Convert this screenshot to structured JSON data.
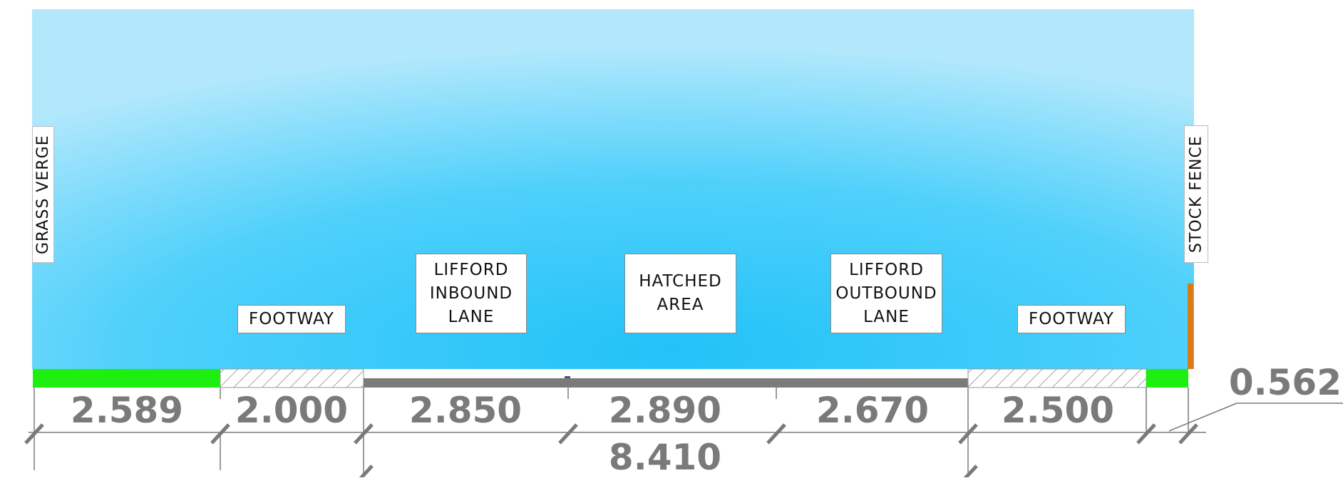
{
  "labels": {
    "grass_verge": "GRASS VERGE",
    "stock_fence": "STOCK FENCE",
    "footway_left": "FOOTWAY",
    "inbound_lane": "LIFFORD\nINBOUND\nLANE",
    "hatched_area": "HATCHED\nAREA",
    "outbound_lane": "LIFFORD\nOUTBOUND\nLANE",
    "footway_right": "FOOTWAY"
  },
  "dimensions": {
    "verge_left": "2.589",
    "footway_left": "2.000",
    "inbound_lane": "2.850",
    "hatched_area": "2.890",
    "outbound_lane": "2.670",
    "footway_right": "2.500",
    "verge_right": "0.562",
    "carriageway_total": "8.410"
  },
  "colors": {
    "sky_light": "#b3e8fc",
    "sky_mid": "#4fd0fb",
    "sky_deep": "#22c2f8",
    "grass": "#1fee11",
    "road": "#7b7b7b",
    "fence": "#d8791a",
    "dimension": "#7a7a7a"
  }
}
